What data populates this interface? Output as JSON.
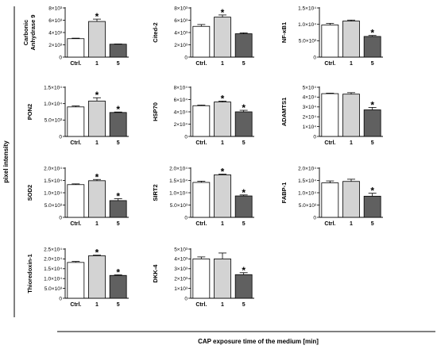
{
  "figure": {
    "y_title": "pixel intensity",
    "x_title": "CAP exposure time of the medium [min]"
  },
  "chart_data": [
    {
      "type": "bar",
      "ylabel": "Carbonic Anhydrase 9",
      "ylabel_lines": [
        "Carbonic",
        "Anhydrase 9"
      ],
      "categories": [
        "Ctrl.",
        "1",
        "5"
      ],
      "values": [
        3000,
        5800,
        2100
      ],
      "errors": [
        80,
        380,
        40
      ],
      "significant": [
        false,
        true,
        false
      ],
      "ylim": [
        0,
        8000
      ],
      "ticks": [
        {
          "v": 0,
          "t": "0"
        },
        {
          "v": 2000,
          "t": "2×10³"
        },
        {
          "v": 4000,
          "t": "4×10³"
        },
        {
          "v": 6000,
          "t": "6×10³"
        },
        {
          "v": 8000,
          "t": "8×10³"
        }
      ],
      "colors": [
        "#ffffff",
        "#d3d3d3",
        "#606060"
      ]
    },
    {
      "type": "bar",
      "ylabel": "Cited-2",
      "ylabel_lines": [
        "Cited-2"
      ],
      "categories": [
        "Ctrl.",
        "1",
        "5"
      ],
      "values": [
        5000,
        6500,
        3800
      ],
      "errors": [
        300,
        350,
        150
      ],
      "significant": [
        false,
        true,
        false
      ],
      "ylim": [
        0,
        8000
      ],
      "ticks": [
        {
          "v": 0,
          "t": "0"
        },
        {
          "v": 2000,
          "t": "2×10³"
        },
        {
          "v": 4000,
          "t": "4×10³"
        },
        {
          "v": 6000,
          "t": "6×10³"
        },
        {
          "v": 8000,
          "t": "8×10³"
        }
      ],
      "colors": [
        "#ffffff",
        "#d3d3d3",
        "#606060"
      ]
    },
    {
      "type": "bar",
      "ylabel": "NF-κB1",
      "ylabel_lines": [
        "NF-κB1"
      ],
      "categories": [
        "Ctrl.",
        "1",
        "5"
      ],
      "values": [
        9800,
        11000,
        6300
      ],
      "errors": [
        500,
        300,
        300
      ],
      "significant": [
        false,
        false,
        true
      ],
      "ylim": [
        0,
        15000
      ],
      "ticks": [
        {
          "v": 0,
          "t": "0"
        },
        {
          "v": 5000,
          "t": "5.0×10³"
        },
        {
          "v": 10000,
          "t": "1.0×10⁴"
        },
        {
          "v": 15000,
          "t": "1.5×10⁴"
        }
      ],
      "colors": [
        "#ffffff",
        "#d3d3d3",
        "#606060"
      ]
    },
    {
      "type": "bar",
      "ylabel": "PON2",
      "ylabel_lines": [
        "PON2"
      ],
      "categories": [
        "Ctrl.",
        "1",
        "5"
      ],
      "values": [
        9000,
        10800,
        7300
      ],
      "errors": [
        300,
        1000,
        150
      ],
      "significant": [
        false,
        true,
        true
      ],
      "ylim": [
        0,
        15000
      ],
      "ticks": [
        {
          "v": 0,
          "t": "0"
        },
        {
          "v": 5000,
          "t": "5.0×10³"
        },
        {
          "v": 10000,
          "t": "1.0×10⁴"
        },
        {
          "v": 15000,
          "t": "1.5×10⁴"
        }
      ],
      "colors": [
        "#ffffff",
        "#d3d3d3",
        "#606060"
      ]
    },
    {
      "type": "bar",
      "ylabel": "HSP70",
      "ylabel_lines": [
        "HSP70"
      ],
      "categories": [
        "Ctrl.",
        "1",
        "5"
      ],
      "values": [
        50000,
        56000,
        40000
      ],
      "errors": [
        1000,
        1500,
        2500
      ],
      "significant": [
        false,
        true,
        true
      ],
      "ylim": [
        0,
        80000
      ],
      "ticks": [
        {
          "v": 0,
          "t": "0"
        },
        {
          "v": 20000,
          "t": "2×10⁴"
        },
        {
          "v": 40000,
          "t": "4×10⁴"
        },
        {
          "v": 60000,
          "t": "6×10⁴"
        },
        {
          "v": 80000,
          "t": "8×10⁴"
        }
      ],
      "colors": [
        "#ffffff",
        "#d3d3d3",
        "#606060"
      ]
    },
    {
      "type": "bar",
      "ylabel": "ADAMTS1",
      "ylabel_lines": [
        "ADAMTS1"
      ],
      "categories": [
        "Ctrl.",
        "1",
        "5"
      ],
      "values": [
        43500,
        43000,
        27000
      ],
      "errors": [
        500,
        1500,
        2500
      ],
      "significant": [
        false,
        false,
        true
      ],
      "ylim": [
        0,
        50000
      ],
      "ticks": [
        {
          "v": 0,
          "t": "0"
        },
        {
          "v": 10000,
          "t": "1×10⁴"
        },
        {
          "v": 20000,
          "t": "2×10⁴"
        },
        {
          "v": 30000,
          "t": "3×10⁴"
        },
        {
          "v": 40000,
          "t": "4×10⁴"
        },
        {
          "v": 50000,
          "t": "5×10⁴"
        }
      ],
      "colors": [
        "#ffffff",
        "#d3d3d3",
        "#606060"
      ]
    },
    {
      "type": "bar",
      "ylabel": "SOD2",
      "ylabel_lines": [
        "SOD2"
      ],
      "categories": [
        "Ctrl.",
        "1",
        "5"
      ],
      "values": [
        13300,
        14900,
        6800
      ],
      "errors": [
        300,
        500,
        800
      ],
      "significant": [
        false,
        true,
        true
      ],
      "ylim": [
        0,
        20000
      ],
      "ticks": [
        {
          "v": 0,
          "t": "0"
        },
        {
          "v": 5000,
          "t": "5.0×10³"
        },
        {
          "v": 10000,
          "t": "1.0×10⁴"
        },
        {
          "v": 15000,
          "t": "1.5×10⁴"
        },
        {
          "v": 20000,
          "t": "2.0×10⁴"
        }
      ],
      "colors": [
        "#ffffff",
        "#d3d3d3",
        "#606060"
      ]
    },
    {
      "type": "bar",
      "ylabel": "SIRT2",
      "ylabel_lines": [
        "SIRT2"
      ],
      "categories": [
        "Ctrl.",
        "1",
        "5"
      ],
      "values": [
        14200,
        17300,
        8700
      ],
      "errors": [
        500,
        300,
        400
      ],
      "significant": [
        false,
        true,
        true
      ],
      "ylim": [
        0,
        20000
      ],
      "ticks": [
        {
          "v": 0,
          "t": "0"
        },
        {
          "v": 5000,
          "t": "5.0×10³"
        },
        {
          "v": 10000,
          "t": "1.0×10⁴"
        },
        {
          "v": 15000,
          "t": "1.5×10⁴"
        },
        {
          "v": 20000,
          "t": "2.0×10⁴"
        }
      ],
      "colors": [
        "#ffffff",
        "#d3d3d3",
        "#606060"
      ]
    },
    {
      "type": "bar",
      "ylabel": "FABP-1",
      "ylabel_lines": [
        "FABP-1"
      ],
      "categories": [
        "Ctrl.",
        "1",
        "5"
      ],
      "values": [
        14000,
        14600,
        8600
      ],
      "errors": [
        800,
        900,
        1200
      ],
      "significant": [
        false,
        false,
        true
      ],
      "ylim": [
        0,
        20000
      ],
      "ticks": [
        {
          "v": 0,
          "t": "0"
        },
        {
          "v": 5000,
          "t": "5.0×10³"
        },
        {
          "v": 10000,
          "t": "1.0×10⁴"
        },
        {
          "v": 15000,
          "t": "1.5×10⁴"
        },
        {
          "v": 20000,
          "t": "2.0×10⁴"
        }
      ],
      "colors": [
        "#ffffff",
        "#d3d3d3",
        "#606060"
      ]
    },
    {
      "type": "bar",
      "ylabel": "Thioredoxin-1",
      "ylabel_lines": [
        "Thioredoxin-1"
      ],
      "categories": [
        "Ctrl.",
        "1",
        "5"
      ],
      "values": [
        18200,
        21600,
        11600
      ],
      "errors": [
        500,
        300,
        300
      ],
      "significant": [
        false,
        true,
        true
      ],
      "ylim": [
        0,
        25000
      ],
      "ticks": [
        {
          "v": 0,
          "t": "0"
        },
        {
          "v": 5000,
          "t": "5.0×10³"
        },
        {
          "v": 10000,
          "t": "1.0×10⁴"
        },
        {
          "v": 15000,
          "t": "1.5×10⁴"
        },
        {
          "v": 20000,
          "t": "2.0×10⁴"
        },
        {
          "v": 25000,
          "t": "2.5×10⁴"
        }
      ],
      "colors": [
        "#ffffff",
        "#d3d3d3",
        "#606060"
      ]
    },
    {
      "type": "bar",
      "ylabel": "DKK-4",
      "ylabel_lines": [
        "DKK-4"
      ],
      "categories": [
        "Ctrl.",
        "1",
        "5"
      ],
      "values": [
        4000,
        4000,
        2400
      ],
      "errors": [
        200,
        600,
        200
      ],
      "significant": [
        false,
        false,
        true
      ],
      "ylim": [
        0,
        5000
      ],
      "ticks": [
        {
          "v": 0,
          "t": "0"
        },
        {
          "v": 1000,
          "t": "1×10³"
        },
        {
          "v": 2000,
          "t": "2×10³"
        },
        {
          "v": 3000,
          "t": "3×10³"
        },
        {
          "v": 4000,
          "t": "4×10³"
        },
        {
          "v": 5000,
          "t": "5×10³"
        }
      ],
      "colors": [
        "#ffffff",
        "#d3d3d3",
        "#606060"
      ]
    }
  ]
}
